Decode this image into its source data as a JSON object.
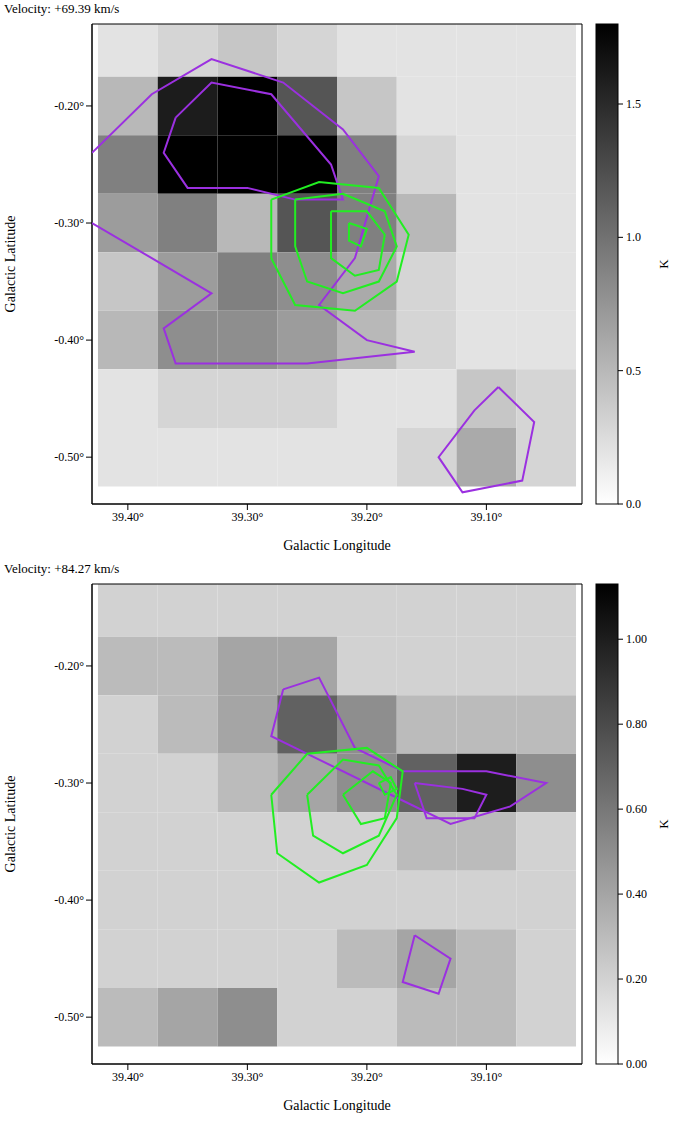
{
  "chart_data": [
    {
      "type": "heatmap",
      "title": "Velocity: +69.39 km/s",
      "x_label": "Galactic Longitude",
      "y_label": "Galactic Latitude",
      "xlim": [
        39.43,
        39.02
      ],
      "xticks": [
        {
          "value": 39.4,
          "label": "39.40°"
        },
        {
          "value": 39.3,
          "label": "39.30°"
        },
        {
          "value": 39.2,
          "label": "39.20°"
        },
        {
          "value": 39.1,
          "label": "39.10°"
        }
      ],
      "ylim": [
        -0.54,
        -0.13
      ],
      "yticks": [
        {
          "value": -0.5,
          "label": "-0.50°"
        },
        {
          "value": -0.4,
          "label": "-0.40°"
        },
        {
          "value": -0.3,
          "label": "-0.30°"
        },
        {
          "value": -0.2,
          "label": "-0.20°"
        }
      ],
      "colorbar": {
        "label": "K",
        "range": [
          0,
          1.8
        ],
        "ticks": [
          {
            "value": 0,
            "label": "0.0"
          },
          {
            "value": 0.5,
            "label": "0.5"
          },
          {
            "value": 1,
            "label": "1.0"
          },
          {
            "value": 1.5,
            "label": "1.5"
          }
        ]
      },
      "cells": {
        "x": [
          39.4,
          39.35,
          39.3,
          39.25,
          39.2,
          39.15,
          39.1,
          39.05
        ],
        "y": [
          -0.15,
          -0.2,
          -0.25,
          -0.3,
          -0.35,
          -0.4,
          -0.45,
          -0.5
        ],
        "values": [
          [
            0.2,
            0.3,
            0.4,
            0.3,
            0.2,
            0.2,
            0.2,
            0.2
          ],
          [
            0.5,
            1.6,
            1.8,
            1.2,
            0.4,
            0.2,
            0.2,
            0.2
          ],
          [
            0.9,
            1.8,
            1.8,
            1.8,
            0.9,
            0.3,
            0.2,
            0.2
          ],
          [
            0.7,
            0.9,
            0.5,
            1.2,
            0.9,
            0.5,
            0.2,
            0.2
          ],
          [
            0.4,
            0.7,
            0.9,
            0.8,
            0.6,
            0.3,
            0.2,
            0.2
          ],
          [
            0.5,
            0.8,
            0.8,
            0.7,
            0.5,
            0.3,
            0.2,
            0.2
          ],
          [
            0.2,
            0.3,
            0.3,
            0.3,
            0.2,
            0.2,
            0.4,
            0.3
          ],
          [
            0.2,
            0.2,
            0.2,
            0.2,
            0.2,
            0.3,
            0.6,
            0.3
          ]
        ]
      },
      "contours": [
        {
          "color": "#9b30e0",
          "lines": [
            {
              "x": [
                39.43,
                39.38,
                39.33,
                39.27,
                39.22,
                39.19,
                39.21,
                39.24,
                39.2,
                39.16,
                39.25,
                39.36,
                39.37,
                39.33,
                39.38,
                39.43
              ],
              "y": [
                -0.24,
                -0.19,
                -0.16,
                -0.18,
                -0.22,
                -0.26,
                -0.33,
                -0.37,
                -0.4,
                -0.41,
                -0.42,
                -0.42,
                -0.39,
                -0.36,
                -0.33,
                -0.3
              ]
            },
            {
              "x": [
                39.36,
                39.33,
                39.28,
                39.23,
                39.22,
                39.26,
                39.3,
                39.35,
                39.37,
                39.36
              ],
              "y": [
                -0.21,
                -0.18,
                -0.19,
                -0.25,
                -0.28,
                -0.28,
                -0.27,
                -0.27,
                -0.24,
                -0.21
              ]
            },
            {
              "x": [
                39.09,
                39.06,
                39.07,
                39.12,
                39.14,
                39.11,
                39.09
              ],
              "y": [
                -0.44,
                -0.47,
                -0.52,
                -0.53,
                -0.5,
                -0.46,
                -0.44
              ]
            }
          ]
        },
        {
          "color": "#22ee22",
          "lines": [
            {
              "x": [
                39.28,
                39.24,
                39.19,
                39.165,
                39.175,
                39.21,
                39.26,
                39.28,
                39.28
              ],
              "y": [
                -0.28,
                -0.265,
                -0.27,
                -0.31,
                -0.35,
                -0.375,
                -0.37,
                -0.33,
                -0.28
              ]
            },
            {
              "x": [
                39.26,
                39.22,
                39.185,
                39.175,
                39.19,
                39.22,
                39.25,
                39.26,
                39.26
              ],
              "y": [
                -0.28,
                -0.275,
                -0.29,
                -0.32,
                -0.35,
                -0.36,
                -0.35,
                -0.32,
                -0.28
              ]
            },
            {
              "x": [
                39.23,
                39.2,
                39.185,
                39.19,
                39.21,
                39.23,
                39.23
              ],
              "y": [
                -0.29,
                -0.29,
                -0.31,
                -0.34,
                -0.345,
                -0.33,
                -0.29
              ]
            },
            {
              "x": [
                39.215,
                39.2,
                39.205,
                39.215,
                39.215
              ],
              "y": [
                -0.3,
                -0.305,
                -0.32,
                -0.315,
                -0.3
              ]
            }
          ]
        }
      ]
    },
    {
      "type": "heatmap",
      "title": "Velocity: +84.27 km/s",
      "x_label": "Galactic Longitude",
      "y_label": "Galactic Latitude",
      "xlim": [
        39.43,
        39.02
      ],
      "xticks": [
        {
          "value": 39.4,
          "label": "39.40°"
        },
        {
          "value": 39.3,
          "label": "39.30°"
        },
        {
          "value": 39.2,
          "label": "39.20°"
        },
        {
          "value": 39.1,
          "label": "39.10°"
        }
      ],
      "ylim": [
        -0.54,
        -0.13
      ],
      "yticks": [
        {
          "value": -0.5,
          "label": "-0.50°"
        },
        {
          "value": -0.4,
          "label": "-0.40°"
        },
        {
          "value": -0.3,
          "label": "-0.30°"
        },
        {
          "value": -0.2,
          "label": "-0.20°"
        }
      ],
      "colorbar": {
        "label": "K",
        "range": [
          0,
          1.13
        ],
        "ticks": [
          {
            "value": 0,
            "label": "0.00"
          },
          {
            "value": 0.2,
            "label": "0.20"
          },
          {
            "value": 0.4,
            "label": "0.40"
          },
          {
            "value": 0.6,
            "label": "0.60"
          },
          {
            "value": 0.8,
            "label": "0.80"
          },
          {
            "value": 1,
            "label": "1.00"
          }
        ]
      },
      "cells": {
        "x": [
          39.4,
          39.35,
          39.3,
          39.25,
          39.2,
          39.15,
          39.1,
          39.05
        ],
        "y": [
          -0.15,
          -0.2,
          -0.25,
          -0.3,
          -0.35,
          -0.4,
          -0.45,
          -0.5
        ],
        "values": [
          [
            0.2,
            0.2,
            0.2,
            0.2,
            0.2,
            0.2,
            0.2,
            0.2
          ],
          [
            0.3,
            0.3,
            0.4,
            0.4,
            0.2,
            0.2,
            0.2,
            0.2
          ],
          [
            0.2,
            0.3,
            0.4,
            0.7,
            0.5,
            0.3,
            0.3,
            0.3
          ],
          [
            0.2,
            0.2,
            0.3,
            0.4,
            0.5,
            0.7,
            1.0,
            0.5
          ],
          [
            0.2,
            0.2,
            0.2,
            0.2,
            0.2,
            0.3,
            0.3,
            0.2
          ],
          [
            0.2,
            0.2,
            0.2,
            0.2,
            0.2,
            0.2,
            0.2,
            0.2
          ],
          [
            0.2,
            0.2,
            0.2,
            0.2,
            0.3,
            0.4,
            0.3,
            0.2
          ],
          [
            0.3,
            0.4,
            0.5,
            0.2,
            0.2,
            0.3,
            0.3,
            0.2
          ]
        ]
      },
      "contours": [
        {
          "color": "#9b30e0",
          "lines": [
            {
              "x": [
                39.27,
                39.24,
                39.21,
                39.17,
                39.1,
                39.05,
                39.08,
                39.13,
                39.18,
                39.24,
                39.28,
                39.27
              ],
              "y": [
                -0.22,
                -0.21,
                -0.27,
                -0.29,
                -0.29,
                -0.3,
                -0.32,
                -0.335,
                -0.31,
                -0.28,
                -0.26,
                -0.22
              ]
            },
            {
              "x": [
                39.16,
                39.12,
                39.1,
                39.11,
                39.15,
                39.16
              ],
              "y": [
                -0.3,
                -0.305,
                -0.31,
                -0.33,
                -0.33,
                -0.3
              ]
            },
            {
              "x": [
                39.16,
                39.13,
                39.14,
                39.17,
                39.16
              ],
              "y": [
                -0.43,
                -0.45,
                -0.48,
                -0.47,
                -0.43
              ]
            }
          ]
        },
        {
          "color": "#22ee22",
          "lines": [
            {
              "x": [
                39.28,
                39.25,
                39.2,
                39.17,
                39.175,
                39.2,
                39.24,
                39.275,
                39.28
              ],
              "y": [
                -0.31,
                -0.275,
                -0.27,
                -0.29,
                -0.33,
                -0.37,
                -0.385,
                -0.36,
                -0.31
              ]
            },
            {
              "x": [
                39.25,
                39.22,
                39.19,
                39.175,
                39.19,
                39.22,
                39.245,
                39.25
              ],
              "y": [
                -0.31,
                -0.28,
                -0.285,
                -0.31,
                -0.345,
                -0.36,
                -0.345,
                -0.31
              ]
            },
            {
              "x": [
                39.22,
                39.195,
                39.18,
                39.185,
                39.205,
                39.22
              ],
              "y": [
                -0.31,
                -0.29,
                -0.3,
                -0.33,
                -0.335,
                -0.31
              ]
            },
            {
              "x": [
                39.19,
                39.18,
                39.175,
                39.185,
                39.19
              ],
              "y": [
                -0.3,
                -0.295,
                -0.305,
                -0.31,
                -0.3
              ]
            }
          ]
        }
      ]
    }
  ]
}
